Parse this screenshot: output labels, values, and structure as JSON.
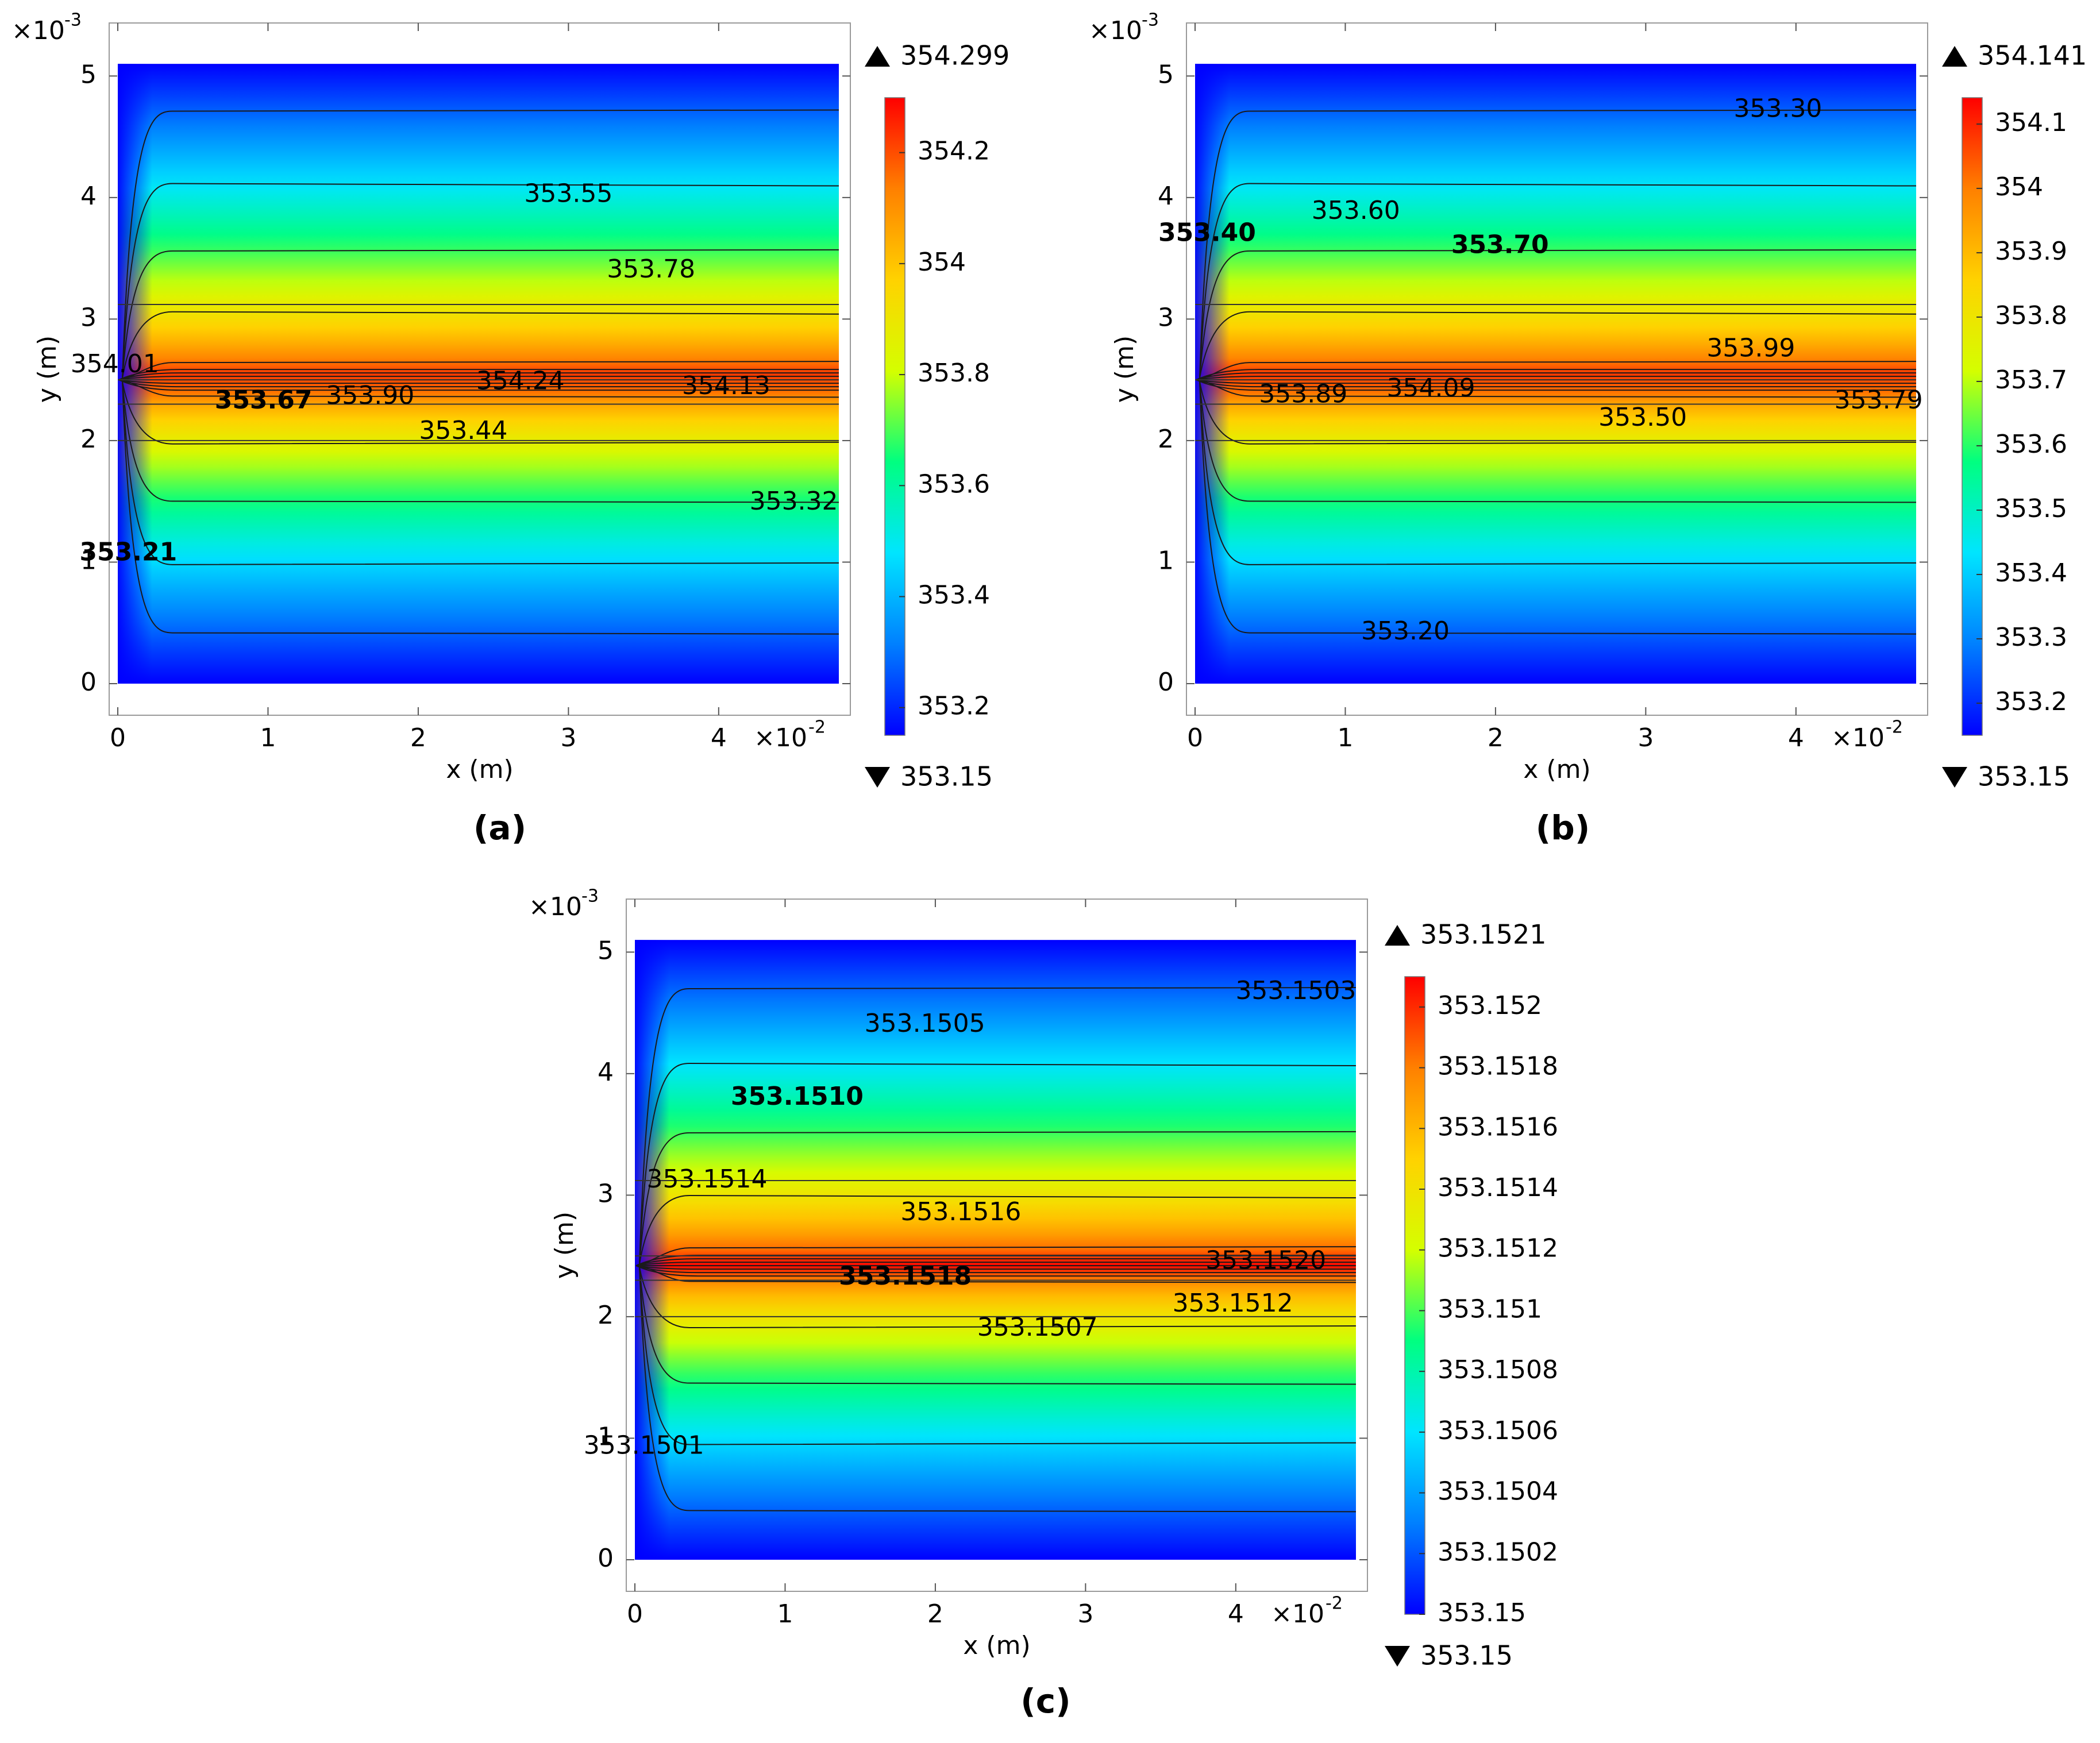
{
  "figure": {
    "captions": [
      "(a)",
      "(b)",
      "(c)"
    ]
  },
  "colormap": [
    "#0000ff",
    "#0080ff",
    "#00e5ff",
    "#00ff80",
    "#d4ff00",
    "#ffd200",
    "#ff8000",
    "#ff0000"
  ],
  "chart_data": [
    {
      "id": "a",
      "type": "heatmap",
      "title": "",
      "caption": "(a)",
      "xlabel": "x (m)",
      "ylabel": "y (m)",
      "x_multiplier": "×10",
      "x_exponent": "-2",
      "y_multiplier": "×10",
      "y_exponent": "-3",
      "xlim": [
        0,
        4.8
      ],
      "ylim": [
        0,
        5.2
      ],
      "domain": {
        "x": [
          0,
          4.8
        ],
        "y": [
          0,
          5.1
        ]
      },
      "x_ticks": [
        0,
        1,
        2,
        3,
        4
      ],
      "y_ticks": [
        0,
        1,
        2,
        3,
        4,
        5
      ],
      "layer_boundaries_y": [
        2.0,
        2.3,
        2.5,
        3.12
      ],
      "peak_y": 2.5,
      "range": [
        353.15,
        354.299
      ],
      "max_label": "354.299",
      "min_label": "353.15",
      "colorbar_ticks": [
        353.2,
        353.4,
        353.6,
        353.8,
        354,
        354.2
      ],
      "colorbar_tick_labels": [
        "353.2",
        "353.4",
        "353.6",
        "353.8",
        "354",
        "354.2"
      ],
      "contour_levels": [
        353.21,
        353.32,
        353.44,
        353.55,
        353.67,
        353.78,
        353.9,
        354.01,
        354.13,
        354.24
      ],
      "contour_labels": [
        {
          "text": "353.55",
          "x": 3.0,
          "y": 4.02,
          "bold": false
        },
        {
          "text": "353.78",
          "x": 3.55,
          "y": 3.4,
          "bold": false
        },
        {
          "text": "354.01",
          "x": -0.02,
          "y": 2.62,
          "bold": false
        },
        {
          "text": "354.24",
          "x": 2.68,
          "y": 2.48,
          "bold": false
        },
        {
          "text": "354.13",
          "x": 4.05,
          "y": 2.44,
          "bold": false
        },
        {
          "text": "353.67",
          "x": 0.97,
          "y": 2.32,
          "bold": true
        },
        {
          "text": "353.90",
          "x": 1.68,
          "y": 2.36,
          "bold": false
        },
        {
          "text": "353.44",
          "x": 2.3,
          "y": 2.07,
          "bold": false
        },
        {
          "text": "353.32",
          "x": 4.5,
          "y": 1.49,
          "bold": false
        },
        {
          "text": "353.21",
          "x": 0.07,
          "y": 1.07,
          "bold": true
        }
      ]
    },
    {
      "id": "b",
      "type": "heatmap",
      "title": "",
      "caption": "(b)",
      "xlabel": "x (m)",
      "ylabel": "y (m)",
      "x_multiplier": "×10",
      "x_exponent": "-2",
      "y_multiplier": "×10",
      "y_exponent": "-3",
      "xlim": [
        0,
        4.8
      ],
      "ylim": [
        0,
        5.2
      ],
      "domain": {
        "x": [
          0,
          4.8
        ],
        "y": [
          0,
          5.1
        ]
      },
      "x_ticks": [
        0,
        1,
        2,
        3,
        4
      ],
      "y_ticks": [
        0,
        1,
        2,
        3,
        4,
        5
      ],
      "layer_boundaries_y": [
        2.0,
        2.3,
        2.5,
        3.12
      ],
      "peak_y": 2.5,
      "range": [
        353.15,
        354.141
      ],
      "max_label": "354.141",
      "min_label": "353.15",
      "colorbar_ticks": [
        353.2,
        353.3,
        353.4,
        353.5,
        353.6,
        353.7,
        353.8,
        353.9,
        354,
        354.1
      ],
      "colorbar_tick_labels": [
        "353.2",
        "353.3",
        "353.4",
        "353.5",
        "353.6",
        "353.7",
        "353.8",
        "353.9",
        "354",
        "354.1"
      ],
      "contour_levels": [
        353.2,
        353.3,
        353.4,
        353.5,
        353.6,
        353.7,
        353.79,
        353.89,
        353.99,
        354.09
      ],
      "contour_labels": [
        {
          "text": "353.30",
          "x": 3.88,
          "y": 4.72,
          "bold": false
        },
        {
          "text": "353.60",
          "x": 1.07,
          "y": 3.88,
          "bold": false
        },
        {
          "text": "353.40",
          "x": 0.08,
          "y": 3.7,
          "bold": true
        },
        {
          "text": "353.70",
          "x": 2.03,
          "y": 3.6,
          "bold": true
        },
        {
          "text": "353.99",
          "x": 3.7,
          "y": 2.75,
          "bold": false
        },
        {
          "text": "354.09",
          "x": 1.57,
          "y": 2.42,
          "bold": false
        },
        {
          "text": "353.89",
          "x": 0.72,
          "y": 2.37,
          "bold": false
        },
        {
          "text": "353.79",
          "x": 4.55,
          "y": 2.32,
          "bold": false
        },
        {
          "text": "353.50",
          "x": 2.98,
          "y": 2.18,
          "bold": false
        },
        {
          "text": "353.20",
          "x": 1.4,
          "y": 0.42,
          "bold": false
        }
      ]
    },
    {
      "id": "c",
      "type": "heatmap",
      "title": "",
      "caption": "(c)",
      "xlabel": "x (m)",
      "ylabel": "y (m)",
      "x_multiplier": "×10",
      "x_exponent": "-2",
      "y_multiplier": "×10",
      "y_exponent": "-3",
      "xlim": [
        0,
        4.8
      ],
      "ylim": [
        0,
        5.2
      ],
      "domain": {
        "x": [
          0,
          4.8
        ],
        "y": [
          0,
          5.1
        ]
      },
      "x_ticks": [
        0,
        1,
        2,
        3,
        4
      ],
      "y_ticks": [
        0,
        1,
        2,
        3,
        4,
        5
      ],
      "layer_boundaries_y": [
        2.0,
        2.3,
        2.5,
        3.12
      ],
      "peak_y": 2.42,
      "range": [
        353.15,
        353.1521
      ],
      "max_label": "353.1521",
      "min_label": "353.15",
      "colorbar_ticks": [
        353.15,
        353.1502,
        353.1504,
        353.1506,
        353.1508,
        353.151,
        353.1512,
        353.1514,
        353.1516,
        353.1518,
        353.152
      ],
      "colorbar_tick_labels": [
        "353.15",
        "353.1502",
        "353.1504",
        "353.1506",
        "353.1508",
        "353.151",
        "353.1512",
        "353.1514",
        "353.1516",
        "353.1518",
        "353.152"
      ],
      "contour_levels": [
        353.1501,
        353.1503,
        353.1505,
        353.1507,
        353.151,
        353.1512,
        353.1514,
        353.1516,
        353.1518,
        353.152
      ],
      "contour_labels": [
        {
          "text": "353.1503",
          "x": 4.4,
          "y": 4.67,
          "bold": false
        },
        {
          "text": "353.1505",
          "x": 1.93,
          "y": 4.4,
          "bold": false
        },
        {
          "text": "353.1510",
          "x": 1.08,
          "y": 3.8,
          "bold": true
        },
        {
          "text": "353.1514",
          "x": 0.48,
          "y": 3.12,
          "bold": false
        },
        {
          "text": "353.1516",
          "x": 2.17,
          "y": 2.85,
          "bold": false
        },
        {
          "text": "353.1520",
          "x": 4.2,
          "y": 2.45,
          "bold": false
        },
        {
          "text": "353.1518",
          "x": 1.8,
          "y": 2.32,
          "bold": true
        },
        {
          "text": "353.1512",
          "x": 3.98,
          "y": 2.1,
          "bold": false
        },
        {
          "text": "353.1507",
          "x": 2.68,
          "y": 1.9,
          "bold": false
        },
        {
          "text": "353.1501",
          "x": 0.06,
          "y": 0.93,
          "bold": false
        }
      ]
    }
  ]
}
